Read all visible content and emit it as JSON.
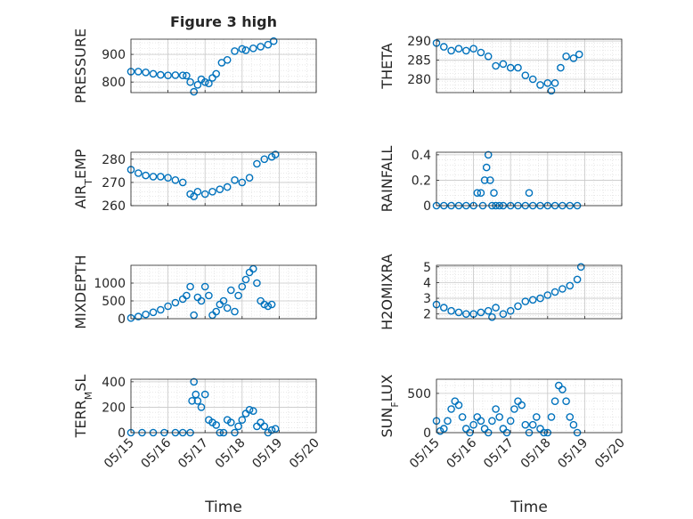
{
  "figure": {
    "title": "Figure 3 high",
    "xlabel": "Time",
    "x_ticks": [
      "05/15",
      "05/16",
      "05/17",
      "05/18",
      "05/19",
      "05/20"
    ],
    "marker_color": "#0072BD",
    "marker": "open-circle"
  },
  "chart_data": [
    {
      "type": "scatter",
      "ylabel": "PRESSURE",
      "ylabel_html": "PRESSURE",
      "xlim": [
        0,
        5
      ],
      "ylim": [
        762,
        955
      ],
      "yticks": [
        800,
        900
      ],
      "grid": true,
      "x": [
        0,
        0.2,
        0.4,
        0.6,
        0.8,
        1.0,
        1.2,
        1.4,
        1.5,
        1.6,
        1.7,
        1.8,
        1.9,
        2.0,
        2.1,
        2.2,
        2.3,
        2.45,
        2.6,
        2.8,
        3.0,
        3.1,
        3.3,
        3.5,
        3.7,
        3.85
      ],
      "y": [
        838,
        838,
        835,
        830,
        826,
        824,
        825,
        824,
        823,
        800,
        765,
        790,
        810,
        800,
        795,
        815,
        830,
        870,
        880,
        912,
        920,
        915,
        922,
        928,
        935,
        948
      ]
    },
    {
      "type": "scatter",
      "ylabel": "THETA",
      "ylabel_html": "THETA",
      "xlim": [
        0,
        5
      ],
      "ylim": [
        276.5,
        290.5
      ],
      "yticks": [
        280,
        285,
        290
      ],
      "grid": true,
      "x": [
        0,
        0.2,
        0.4,
        0.6,
        0.8,
        1.0,
        1.2,
        1.4,
        1.6,
        1.8,
        2.0,
        2.2,
        2.4,
        2.6,
        2.8,
        3.0,
        3.1,
        3.2,
        3.35,
        3.5,
        3.7,
        3.85
      ],
      "y": [
        289.5,
        288.5,
        287.5,
        288,
        287.5,
        288,
        287,
        286,
        283.5,
        284,
        283,
        283,
        281,
        280,
        278.5,
        279,
        277,
        279,
        283,
        286,
        285.5,
        286.5
      ]
    },
    {
      "type": "scatter",
      "ylabel": "AIR_TEMP",
      "ylabel_html": "AIR<tspan baseline-shift='sub' font-size='11'>T</tspan>EMP",
      "xlim": [
        0,
        5
      ],
      "ylim": [
        260,
        283
      ],
      "yticks": [
        260,
        270,
        280
      ],
      "grid": true,
      "x": [
        0,
        0.2,
        0.4,
        0.6,
        0.8,
        1.0,
        1.2,
        1.4,
        1.6,
        1.7,
        1.8,
        2.0,
        2.2,
        2.4,
        2.6,
        2.8,
        3.0,
        3.2,
        3.4,
        3.6,
        3.8,
        3.9
      ],
      "y": [
        275.5,
        274,
        273,
        272.5,
        272.5,
        272,
        271,
        270,
        265,
        264,
        266,
        265,
        266,
        267,
        268,
        271,
        270,
        272,
        278,
        280,
        281,
        282
      ]
    },
    {
      "type": "scatter",
      "ylabel": "RAINFALL",
      "ylabel_html": "RAINFALL",
      "xlim": [
        0,
        5
      ],
      "ylim": [
        0,
        0.42
      ],
      "yticks": [
        0,
        0.2,
        0.4
      ],
      "ytick_labels": [
        "0",
        "0.2",
        "0.4"
      ],
      "grid": true,
      "x": [
        0,
        0.2,
        0.4,
        0.6,
        0.8,
        1.0,
        1.1,
        1.2,
        1.25,
        1.3,
        1.35,
        1.4,
        1.45,
        1.5,
        1.55,
        1.6,
        1.7,
        1.8,
        2.0,
        2.2,
        2.4,
        2.5,
        2.6,
        2.8,
        3.0,
        3.2,
        3.4,
        3.6,
        3.8
      ],
      "y": [
        0,
        0,
        0,
        0,
        0,
        0,
        0.1,
        0.1,
        0,
        0.2,
        0.3,
        0.4,
        0.2,
        0,
        0.1,
        0,
        0,
        0,
        0,
        0,
        0,
        0.1,
        0,
        0,
        0,
        0,
        0,
        0,
        0
      ]
    },
    {
      "type": "scatter",
      "ylabel": "MIXDEPTH",
      "ylabel_html": "MIXDEPTH",
      "xlim": [
        0,
        5
      ],
      "ylim": [
        0,
        1500
      ],
      "yticks": [
        0,
        500,
        1000
      ],
      "grid": true,
      "x": [
        0,
        0.2,
        0.4,
        0.6,
        0.8,
        1.0,
        1.2,
        1.4,
        1.5,
        1.6,
        1.7,
        1.8,
        1.9,
        2.0,
        2.1,
        2.2,
        2.3,
        2.4,
        2.5,
        2.6,
        2.7,
        2.8,
        2.9,
        3.0,
        3.1,
        3.2,
        3.3,
        3.4,
        3.5,
        3.6,
        3.7,
        3.8
      ],
      "y": [
        20,
        60,
        120,
        180,
        250,
        350,
        450,
        550,
        650,
        900,
        100,
        600,
        500,
        900,
        650,
        100,
        200,
        400,
        500,
        300,
        800,
        200,
        650,
        900,
        1100,
        1300,
        1400,
        1000,
        500,
        400,
        350,
        400
      ]
    },
    {
      "type": "scatter",
      "ylabel": "H2OMIXRA",
      "ylabel_html": "H2OMIXRA",
      "xlim": [
        0,
        5
      ],
      "ylim": [
        1.7,
        5.1
      ],
      "yticks": [
        2,
        3,
        4,
        5
      ],
      "grid": true,
      "x": [
        0,
        0.2,
        0.4,
        0.6,
        0.8,
        1.0,
        1.2,
        1.4,
        1.5,
        1.6,
        1.8,
        2.0,
        2.2,
        2.4,
        2.6,
        2.8,
        3.0,
        3.2,
        3.4,
        3.6,
        3.8,
        3.9
      ],
      "y": [
        2.6,
        2.4,
        2.2,
        2.1,
        2.0,
        2.0,
        2.1,
        2.2,
        1.8,
        2.4,
        2.0,
        2.2,
        2.5,
        2.8,
        2.9,
        3.0,
        3.2,
        3.4,
        3.6,
        3.8,
        4.2,
        5.0
      ]
    },
    {
      "type": "scatter",
      "ylabel": "TERR_MSL",
      "ylabel_html": "TERR<tspan baseline-shift='sub' font-size='11'>M</tspan>SL",
      "xlim": [
        0,
        5
      ],
      "ylim": [
        0,
        420
      ],
      "yticks": [
        0,
        200,
        400
      ],
      "grid": true,
      "x": [
        0,
        0.3,
        0.6,
        0.9,
        1.2,
        1.4,
        1.6,
        1.65,
        1.7,
        1.75,
        1.8,
        1.9,
        2.0,
        2.1,
        2.2,
        2.3,
        2.4,
        2.5,
        2.6,
        2.7,
        2.8,
        2.9,
        3.0,
        3.1,
        3.2,
        3.3,
        3.4,
        3.5,
        3.6,
        3.7,
        3.8,
        3.9
      ],
      "y": [
        0,
        0,
        0,
        0,
        0,
        0,
        0,
        250,
        400,
        300,
        250,
        200,
        300,
        100,
        80,
        60,
        0,
        0,
        100,
        80,
        0,
        50,
        100,
        150,
        180,
        170,
        50,
        80,
        50,
        0,
        20,
        30
      ]
    },
    {
      "type": "scatter",
      "ylabel": "SUN_FLUX",
      "ylabel_html": "SUN<tspan baseline-shift='sub' font-size='11'>F</tspan>LUX",
      "xlim": [
        0,
        5
      ],
      "ylim": [
        0,
        680
      ],
      "yticks": [
        0,
        500
      ],
      "grid": true,
      "x": [
        0,
        0.1,
        0.2,
        0.3,
        0.4,
        0.5,
        0.6,
        0.7,
        0.8,
        0.9,
        1.0,
        1.1,
        1.2,
        1.3,
        1.4,
        1.5,
        1.6,
        1.7,
        1.8,
        1.9,
        2.0,
        2.1,
        2.2,
        2.3,
        2.4,
        2.5,
        2.6,
        2.7,
        2.8,
        2.9,
        3.0,
        3.1,
        3.2,
        3.3,
        3.4,
        3.5,
        3.6,
        3.7,
        3.8
      ],
      "y": [
        150,
        20,
        50,
        150,
        300,
        400,
        350,
        200,
        50,
        0,
        100,
        200,
        150,
        50,
        0,
        150,
        300,
        200,
        50,
        0,
        150,
        300,
        400,
        350,
        100,
        0,
        100,
        200,
        50,
        0,
        0,
        200,
        400,
        600,
        550,
        400,
        200,
        100,
        0
      ]
    }
  ]
}
